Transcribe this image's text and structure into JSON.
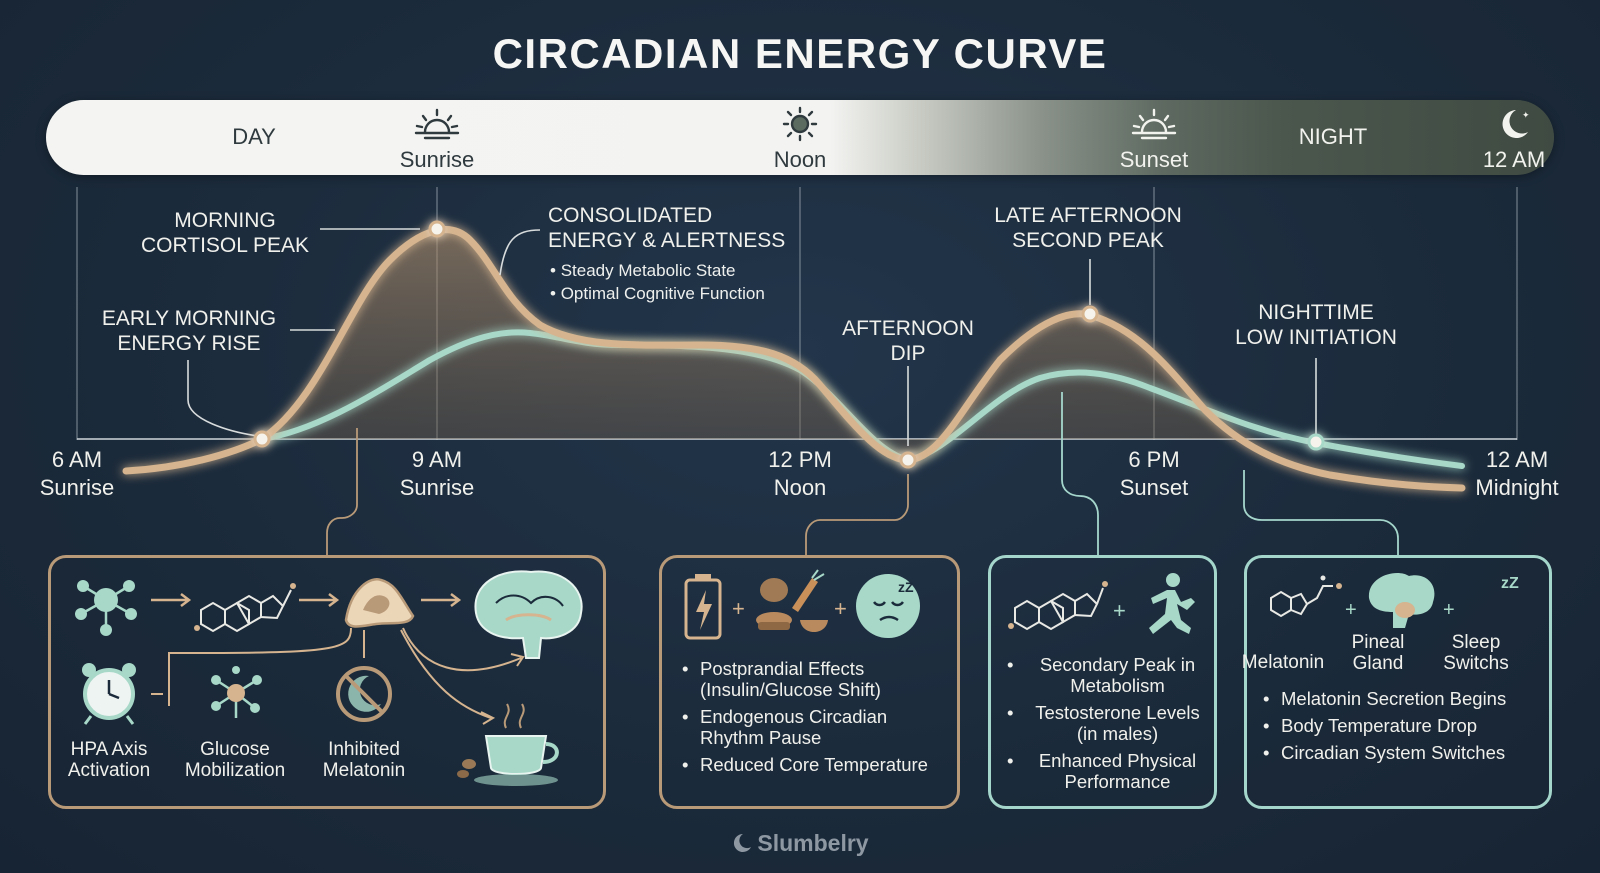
{
  "title": "CIRCADIAN ENERGY CURVE",
  "timeline": {
    "day": "DAY",
    "sunrise": "Sunrise",
    "noon": "Noon",
    "sunset": "Sunset",
    "night": "NIGHT",
    "midnight": "12 AM"
  },
  "annotations": {
    "cortisol_peak": [
      "MORNING",
      "CORTISOL PEAK"
    ],
    "early_rise": [
      "EARLY MORNING",
      "ENERGY RISE"
    ],
    "consolidated": [
      "CONSOLIDATED",
      "ENERGY & ALERTNESS"
    ],
    "consolidated_bullets": [
      "Steady Metabolic State",
      "Optimal Cognitive Function"
    ],
    "afternoon_dip": [
      "AFTERNOON",
      "DIP"
    ],
    "second_peak": [
      "LATE AFTERNOON",
      "SECOND PEAK"
    ],
    "night_low": [
      "NIGHTTIME",
      "LOW INITIATION"
    ]
  },
  "x_axis": [
    {
      "time": "6 AM",
      "sub": "Sunrise"
    },
    {
      "time": "9 AM",
      "sub": "Sunrise"
    },
    {
      "time": "12 PM",
      "sub": "Noon"
    },
    {
      "time": "6 PM",
      "sub": "Sunset"
    },
    {
      "time": "12 AM",
      "sub": "Midnight"
    }
  ],
  "colors": {
    "energy_curve": "#d5b48f",
    "secondary_curve": "#a7d8c8",
    "warm_border": "#b99a78",
    "cool_border": "#a5d6cc",
    "background": "#1c2b3b"
  },
  "panels": {
    "morning": {
      "captions": [
        [
          "HPA Axis",
          "Activation"
        ],
        [
          "Glucose",
          "Mobilization"
        ],
        [
          "Inhibited",
          "Melatonin"
        ]
      ],
      "icons": [
        "molecule-icon",
        "steroid-icon",
        "adrenal-gland-icon",
        "brain-icon",
        "alarm-clock-icon",
        "glucose-molecule-icon",
        "no-moon-icon",
        "coffee-cup-icon"
      ]
    },
    "dip": {
      "bullets": [
        [
          "Postprandial Effects",
          "(Insulin/Glucose Shift)"
        ],
        [
          "Endogenous Circadian",
          "Rhythm Pause"
        ],
        [
          "Reduced Core Temperature"
        ]
      ],
      "icons": [
        "battery-icon",
        "food-icon",
        "sleepy-face-icon"
      ]
    },
    "second_peak": {
      "bullets": [
        [
          "Secondary Peak in",
          "Metabolism"
        ],
        [
          "Testosterone Levels",
          "(in males)"
        ],
        [
          "Enhanced Physical",
          "Performance"
        ]
      ],
      "icons": [
        "steroid-icon",
        "runner-icon"
      ]
    },
    "night": {
      "captions": [
        [
          "Melatonin"
        ],
        [
          "Pineal",
          "Gland"
        ],
        [
          "Sleep",
          "Switchs"
        ]
      ],
      "bullets": [
        "Melatonin Secretion Begins",
        "Body Temperature Drop",
        "Circadian System Switches"
      ],
      "icons": [
        "melatonin-molecule-icon",
        "pineal-gland-icon",
        "moon-zz-icon"
      ]
    }
  },
  "brand": "Slumbelry"
}
